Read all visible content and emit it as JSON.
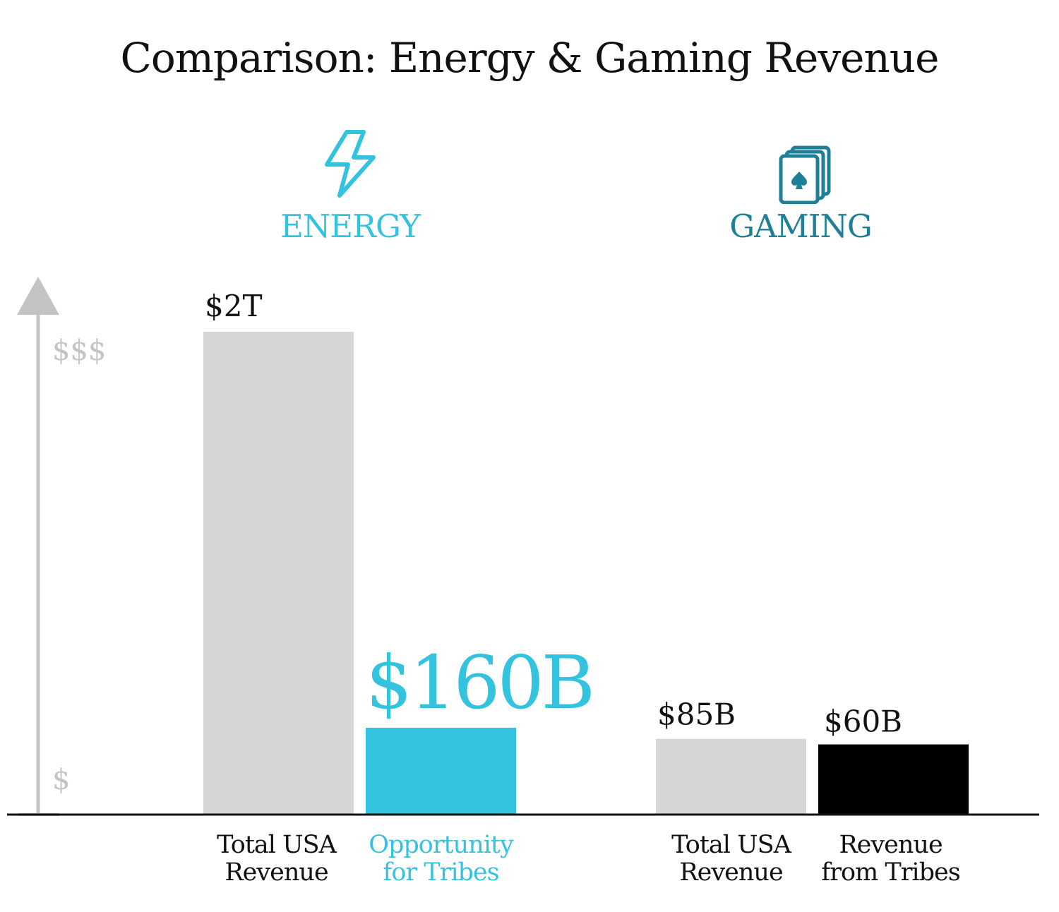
{
  "title": "Comparison: Energy & Gaming Revenue",
  "colors": {
    "energy": "#33c3df",
    "gaming": "#1f7f96",
    "gray_bar": "#d6d6d6",
    "black_bar": "#000000",
    "axis_gray": "#c4c4c4"
  },
  "groups": [
    {
      "label": "ENERGY",
      "icon": "lightning-bolt-icon"
    },
    {
      "label": "GAMING",
      "icon": "playing-cards-icon"
    }
  ],
  "y_axis": {
    "high_label": "$$$",
    "low_label": "$"
  },
  "chart_data": {
    "type": "bar",
    "title": "Comparison: Energy & Gaming Revenue",
    "unit": "USD",
    "bars": [
      {
        "group": "ENERGY",
        "category": "Total USA Revenue",
        "value": 2000000000000,
        "value_label": "$2T"
      },
      {
        "group": "ENERGY",
        "category": "Opportunity for Tribes",
        "value": 160000000000,
        "value_label": "$160B"
      },
      {
        "group": "GAMING",
        "category": "Total USA Revenue",
        "value": 85000000000,
        "value_label": "$85B"
      },
      {
        "group": "GAMING",
        "category": "Revenue from Tribes",
        "value": 60000000000,
        "value_label": "$60B"
      }
    ],
    "axis_scale": "not to scale",
    "grid": false,
    "legend": "none"
  }
}
